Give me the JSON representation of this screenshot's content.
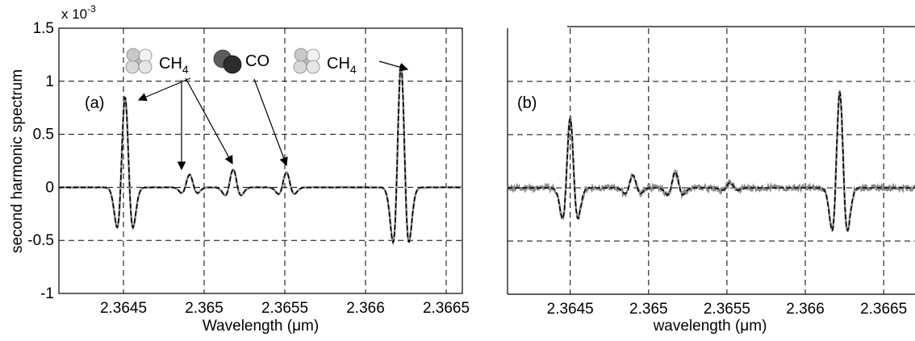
{
  "chart_data": [
    {
      "type": "line",
      "panel_label": "(a)",
      "xlabel": "Wavelength (μm)",
      "ylabel": "second harmonic spectrum",
      "y_exponent": "x 10",
      "y_exponent_power": "-3",
      "xlim": [
        2.3641,
        2.3666
      ],
      "ylim": [
        -1.0,
        1.5
      ],
      "xticks": [
        2.3645,
        2.365,
        2.3655,
        2.366,
        2.3665
      ],
      "xtick_labels": [
        "2.3645",
        "2.365",
        "2.3655",
        "2.366",
        "2.3665"
      ],
      "yticks": [
        -1.0,
        -0.5,
        0.0,
        0.5,
        1.0,
        1.5
      ],
      "ytick_labels": [
        "-1",
        "-0.5",
        "0",
        "0.5",
        "1",
        "1.5"
      ],
      "grid": true,
      "peaks": [
        {
          "x": 2.36451,
          "amp": 0.85
        },
        {
          "x": 2.36491,
          "amp": 0.12
        },
        {
          "x": 2.36518,
          "amp": 0.17
        },
        {
          "x": 2.36551,
          "amp": 0.14
        },
        {
          "x": 2.36622,
          "amp": 1.16
        }
      ],
      "peak_width_um": 4e-05,
      "annotations": [
        {
          "text": "CH",
          "sub": "4",
          "molecule": "methane"
        },
        {
          "text": "CO",
          "molecule": "carbon-monoxide"
        },
        {
          "text": "CH",
          "sub": "4",
          "molecule": "methane"
        }
      ],
      "series": [
        {
          "style": "solid-gray",
          "color": "#8a8a8a",
          "noise": 0.004
        },
        {
          "style": "dashed-black",
          "color": "#000000",
          "noise": 0
        }
      ]
    },
    {
      "type": "line",
      "panel_label": "(b)",
      "xlabel": "wavelength (μm)",
      "ylabel": "",
      "xlim": [
        2.3641,
        2.3667
      ],
      "ylim": [
        -1.0,
        1.5
      ],
      "xticks": [
        2.3645,
        2.365,
        2.3655,
        2.366,
        2.3665
      ],
      "xtick_labels": [
        "2.3645",
        "2.365",
        "2.3655",
        "2.366",
        "2.3665"
      ],
      "yticks": [
        -0.5,
        0.0,
        0.5,
        1.0
      ],
      "grid": true,
      "peaks": [
        {
          "x": 2.3645,
          "amp": 0.65
        },
        {
          "x": 2.3649,
          "amp": 0.12
        },
        {
          "x": 2.36517,
          "amp": 0.15
        },
        {
          "x": 2.36552,
          "amp": 0.05
        },
        {
          "x": 2.36622,
          "amp": 0.9
        }
      ],
      "peak_width_um": 4e-05,
      "series": [
        {
          "style": "solid-gray",
          "color": "#8a8a8a",
          "noise": 0.025
        },
        {
          "style": "dashed-black",
          "color": "#000000",
          "noise": 0
        }
      ]
    }
  ]
}
